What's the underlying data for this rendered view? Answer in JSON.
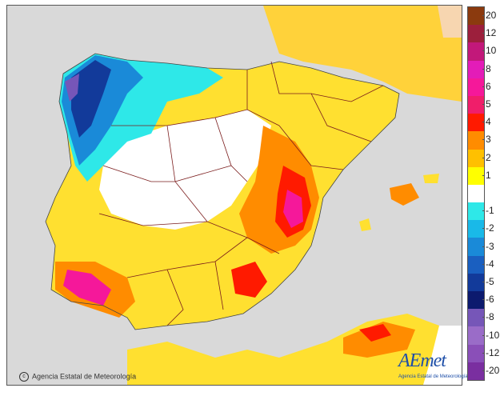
{
  "credit": "Agencia Estatal de Meteorología",
  "logo": {
    "word": "AEmet",
    "sub": "Agencia Estatal de Meteorología"
  },
  "legend": [
    {
      "label": "20",
      "color": "#8b3a0e"
    },
    {
      "label": "12",
      "color": "#9c1f3c"
    },
    {
      "label": "10",
      "color": "#c2187a"
    },
    {
      "label": "8",
      "color": "#e31cb8"
    },
    {
      "label": "6",
      "color": "#f5189a"
    },
    {
      "label": "5",
      "color": "#f01e6a"
    },
    {
      "label": "4",
      "color": "#ff1a00"
    },
    {
      "label": "3",
      "color": "#ff8c00"
    },
    {
      "label": "2",
      "color": "#ffc000"
    },
    {
      "label": "1",
      "color": "#ffff00"
    },
    {
      "label": "",
      "color": "#ffffff"
    },
    {
      "label": "-1",
      "color": "#2ee8e8"
    },
    {
      "label": "-2",
      "color": "#19b9e8"
    },
    {
      "label": "-3",
      "color": "#1a8ad8"
    },
    {
      "label": "-4",
      "color": "#1a5fc0"
    },
    {
      "label": "-5",
      "color": "#123a9a"
    },
    {
      "label": "-6",
      "color": "#0c1a6e"
    },
    {
      "label": "-8",
      "color": "#7656b8"
    },
    {
      "label": "-10",
      "color": "#9a6cc8"
    },
    {
      "label": "-12",
      "color": "#8a4fb8"
    },
    {
      "label": "-20",
      "color": "#7a2fa0"
    }
  ]
}
